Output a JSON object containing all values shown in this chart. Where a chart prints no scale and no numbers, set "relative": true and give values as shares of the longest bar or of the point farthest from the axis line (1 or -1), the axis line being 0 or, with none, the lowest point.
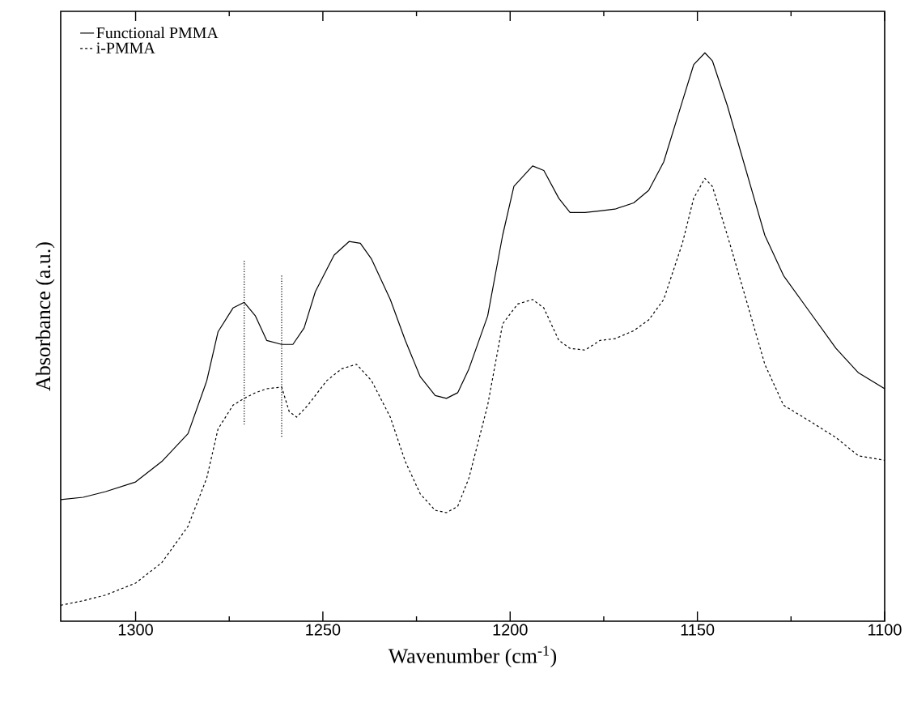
{
  "chart_data": {
    "type": "line",
    "relative": true,
    "xlabel": "Wavenumber (cm$^{-1}$)",
    "ylabel": "Absorbance (a.u.)",
    "xlim": [
      1320,
      1100
    ],
    "xticks": [
      1300,
      1250,
      1200,
      1150,
      1100
    ],
    "grid": false,
    "legend": "top left",
    "marker": "none",
    "series": [
      {
        "name": "Functional PMMA",
        "color": "#000000",
        "line_style": "solid",
        "x": [
          1320,
          1314,
          1308,
          1300,
          1293,
          1286,
          1281,
          1278,
          1274,
          1271,
          1268,
          1265,
          1261,
          1258,
          1255,
          1252,
          1247,
          1243,
          1240,
          1237,
          1232,
          1228,
          1224,
          1220,
          1217,
          1214,
          1211,
          1206,
          1202,
          1199,
          1194,
          1191,
          1187,
          1184,
          1180,
          1176,
          1172,
          1167,
          1163,
          1159,
          1154,
          1151,
          1148,
          1146,
          1142,
          1137,
          1132,
          1127,
          1120,
          1113,
          1107,
          1100
        ],
        "values": [
          0.214,
          0.218,
          0.228,
          0.245,
          0.281,
          0.33,
          0.423,
          0.509,
          0.551,
          0.561,
          0.537,
          0.494,
          0.487,
          0.487,
          0.516,
          0.58,
          0.644,
          0.668,
          0.665,
          0.637,
          0.566,
          0.494,
          0.43,
          0.397,
          0.392,
          0.402,
          0.444,
          0.537,
          0.679,
          0.765,
          0.801,
          0.793,
          0.744,
          0.719,
          0.719,
          0.722,
          0.725,
          0.736,
          0.758,
          0.808,
          0.915,
          0.979,
          1,
          0.986,
          0.907,
          0.793,
          0.679,
          0.608,
          0.544,
          0.48,
          0.437,
          0.409
        ]
      },
      {
        "name": "i-PMMA",
        "color": "#000000",
        "line_style": "dashed",
        "x": [
          1320,
          1314,
          1308,
          1300,
          1293,
          1286,
          1281,
          1278,
          1274,
          1271,
          1268,
          1265,
          1261,
          1259,
          1257,
          1254,
          1249,
          1245,
          1241,
          1237,
          1232,
          1228,
          1224,
          1220,
          1217,
          1214,
          1211,
          1206,
          1202,
          1198,
          1194,
          1191,
          1187,
          1184,
          1180,
          1176,
          1172,
          1167,
          1163,
          1159,
          1154,
          1151,
          1148,
          1146,
          1142,
          1137,
          1132,
          1127,
          1120,
          1113,
          1107,
          1100
        ],
        "values": [
          0.028,
          0.036,
          0.046,
          0.067,
          0.103,
          0.167,
          0.252,
          0.338,
          0.38,
          0.392,
          0.402,
          0.409,
          0.412,
          0.369,
          0.359,
          0.38,
          0.423,
          0.444,
          0.452,
          0.423,
          0.359,
          0.281,
          0.224,
          0.195,
          0.191,
          0.202,
          0.252,
          0.38,
          0.523,
          0.558,
          0.566,
          0.551,
          0.494,
          0.48,
          0.477,
          0.494,
          0.497,
          0.511,
          0.53,
          0.566,
          0.665,
          0.744,
          0.779,
          0.765,
          0.679,
          0.566,
          0.452,
          0.38,
          0.352,
          0.323,
          0.291,
          0.283
        ]
      },
      {
        "color": "#000000",
        "line_style": "dotted",
        "x": [
          1271,
          1271
        ],
        "values": [
          0.634,
          0.345
        ]
      },
      {
        "color": "#000000",
        "line_style": "dotted",
        "x": [
          1261,
          1261
        ],
        "values": [
          0.608,
          0.323
        ]
      }
    ]
  }
}
